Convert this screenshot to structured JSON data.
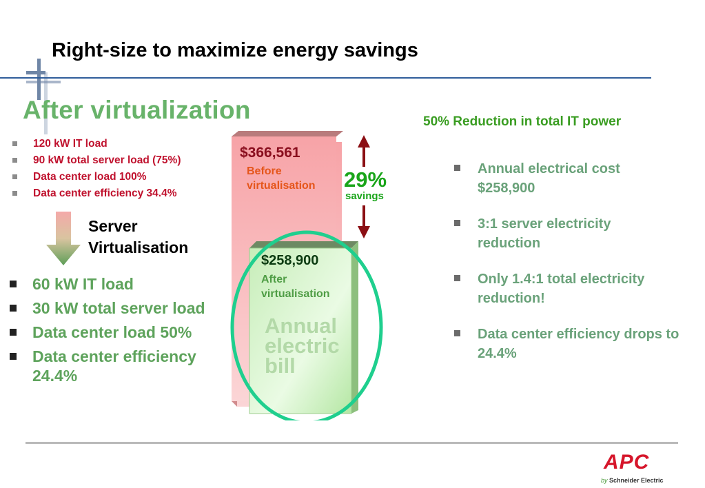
{
  "title": "Right-size to maximize energy savings",
  "subtitle": "After virtualization",
  "before_list": [
    "120 kW IT load",
    "90 kW total server load (75%)",
    "Data center load 100%",
    "Data center efficiency 34.4%"
  ],
  "transition_label_line1": "Server",
  "transition_label_line2": "Virtualisation",
  "after_list": [
    "60 kW IT load",
    "30 kW total server load",
    "Data center load 50%",
    "Data center efficiency 24.4%"
  ],
  "chart": {
    "before_value": "$366,561",
    "before_caption_line1": "Before",
    "before_caption_line2": "virtualisation",
    "after_value": "$258,900",
    "after_caption_line1": "After",
    "after_caption_line2": "virtualisation",
    "bill_line1": "Annual",
    "bill_line2": "electric",
    "bill_line3": "bill",
    "savings_pct": "29%",
    "savings_label": "savings"
  },
  "reduction_title": "50% Reduction in total IT power",
  "right_list": [
    "Annual electrical cost $258,900",
    "3:1 server electricity reduction",
    "Only 1.4:1 total electricity reduction!",
    "Data center efficiency drops to 24.4%"
  ],
  "logo": {
    "brand": "APC",
    "by": "by",
    "company": "Schneider Electric"
  },
  "colors": {
    "title_rule": "#2f5d9a",
    "subtitle_green": "#68b36a",
    "red_text": "#c0122e",
    "ellipse": "#1fcf8e",
    "arrow": "#8b0f14"
  }
}
